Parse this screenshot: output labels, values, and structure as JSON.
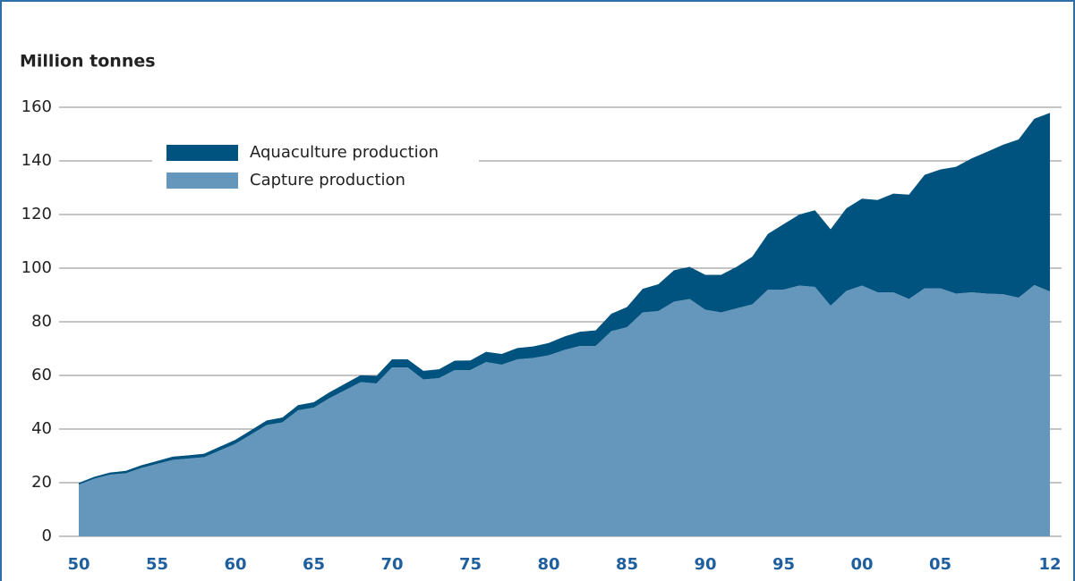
{
  "chart_data": {
    "type": "stacked_area",
    "y_label": "Million tonnes",
    "categories": [
      "50",
      null,
      null,
      null,
      null,
      "55",
      null,
      null,
      null,
      null,
      "60",
      null,
      null,
      null,
      null,
      "65",
      null,
      null,
      null,
      null,
      "70",
      null,
      null,
      null,
      null,
      "75",
      null,
      null,
      null,
      null,
      "80",
      null,
      null,
      null,
      null,
      "85",
      null,
      null,
      null,
      null,
      "90",
      null,
      null,
      null,
      null,
      "95",
      null,
      null,
      null,
      null,
      "00",
      null,
      null,
      null,
      null,
      "05",
      null,
      null,
      null,
      null,
      null,
      null,
      "12"
    ],
    "series": [
      {
        "name": "Capture production",
        "color": "#6497bb",
        "values": [
          19.3,
          21.5,
          23,
          23.5,
          25.5,
          27,
          28.5,
          29,
          29.5,
          32,
          34.5,
          38,
          41.5,
          42.5,
          47,
          48,
          51.5,
          54.5,
          57.5,
          57,
          63,
          63,
          58.5,
          59,
          62,
          62,
          65,
          64,
          66,
          66.5,
          67.5,
          69.5,
          71,
          71,
          76.5,
          78,
          83.5,
          84,
          87.5,
          88.5,
          84.5,
          83.5,
          85,
          86.5,
          92,
          92,
          93.5,
          93,
          86,
          91.5,
          93.5,
          91,
          91,
          88.5,
          92.5,
          92.5,
          90.5,
          91,
          90.5,
          90.3,
          89,
          93.7,
          91.3
        ]
      },
      {
        "name": "Aquaculture production",
        "color": "#00527f",
        "values": [
          0.6,
          0.7,
          0.8,
          0.9,
          1.0,
          1.1,
          1.2,
          1.2,
          1.3,
          1.4,
          1.5,
          1.6,
          1.7,
          1.8,
          1.9,
          2.0,
          2.2,
          2.4,
          2.6,
          2.8,
          3.0,
          3.0,
          3.2,
          3.3,
          3.5,
          3.6,
          3.8,
          4.0,
          4.2,
          4.3,
          4.6,
          5.0,
          5.3,
          5.8,
          6.5,
          7.5,
          8.8,
          10,
          11.7,
          12,
          13,
          14,
          15.5,
          17.8,
          20.8,
          24.4,
          26.5,
          28.6,
          28.5,
          30.8,
          32.4,
          34.4,
          36.8,
          38.9,
          42.3,
          44.3,
          47.3,
          49.9,
          52.9,
          55.7,
          59.0,
          62,
          66.6
        ]
      }
    ],
    "ylim": [
      0,
      160
    ],
    "yticks": [
      0,
      20,
      40,
      60,
      80,
      100,
      120,
      140,
      160
    ],
    "grid": true
  }
}
